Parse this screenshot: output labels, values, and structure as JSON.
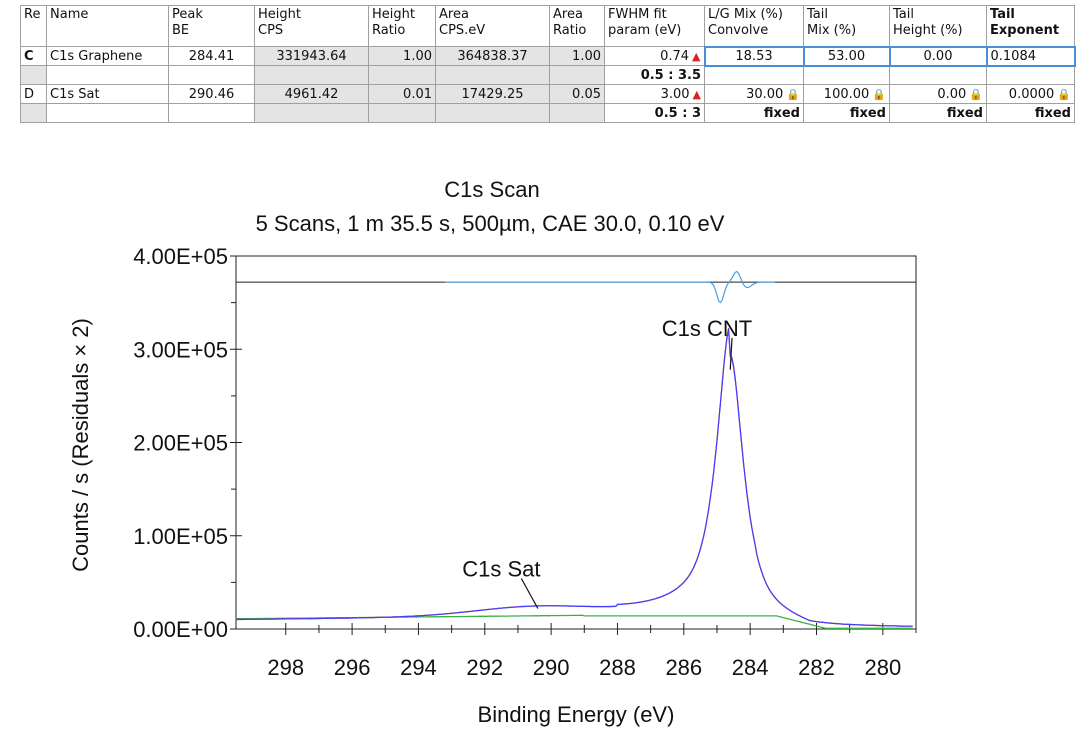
{
  "table": {
    "headers": [
      {
        "line1": "Re",
        "line2": ""
      },
      {
        "line1": "Name",
        "line2": ""
      },
      {
        "line1": "Peak",
        "line2": "BE"
      },
      {
        "line1": "Height",
        "line2": "CPS"
      },
      {
        "line1": "Height",
        "line2": "Ratio"
      },
      {
        "line1": "Area",
        "line2": "CPS.eV"
      },
      {
        "line1": "Area",
        "line2": "Ratio"
      },
      {
        "line1": "FWHM fit",
        "line2": "param (eV)"
      },
      {
        "line1": "L/G Mix (%)",
        "line2": "Convolve"
      },
      {
        "line1": "Tail",
        "line2": " Mix (%)"
      },
      {
        "line1": "Tail",
        "line2": "Height (%)"
      },
      {
        "line1": "Tail",
        "line2": "Exponent"
      }
    ],
    "rows": [
      {
        "id": "C",
        "name": "C1s Graphene",
        "peak_be": "284.41",
        "height_cps": "331943.64",
        "height_ratio": "1.00",
        "area": "364838.37",
        "area_ratio": "1.00",
        "fwhm": "0.74",
        "lg_mix": "18.53",
        "tail_mix": "53.00",
        "tail_height": "0.00",
        "tail_exp": "0.1084",
        "sub": {
          "fwhm": "0.5 : 3.5",
          "lg_mix": "",
          "tail_mix": "",
          "tail_height": "",
          "tail_exp": ""
        }
      },
      {
        "id": "D",
        "name": "C1s Sat",
        "peak_be": "290.46",
        "height_cps": "4961.42",
        "height_ratio": "0.01",
        "area": "17429.25",
        "area_ratio": "0.05",
        "fwhm": "3.00",
        "lg_mix": "30.00",
        "tail_mix": "100.00",
        "tail_height": "0.00",
        "tail_exp": "0.0000",
        "sub": {
          "fwhm": "0.5 : 3",
          "lg_mix": "fixed",
          "tail_mix": "fixed",
          "tail_height": "fixed",
          "tail_exp": "fixed"
        }
      }
    ],
    "peak_icon": "▲",
    "lock_icon": "🔒"
  },
  "chart_data": {
    "type": "line",
    "title": "C1s Scan",
    "subtitle": "5 Scans,  1 m 35.5 s,  500µm,  CAE 30.0,  0.10 eV",
    "xlabel": "Binding Energy (eV)",
    "ylabel": "Counts / s  (Residuals × 2)",
    "xlim": [
      299.5,
      279
    ],
    "ylim": [
      0,
      400000
    ],
    "x_ticks": [
      298,
      296,
      294,
      292,
      290,
      288,
      286,
      284,
      282,
      280
    ],
    "y_ticks": [
      {
        "v": 0,
        "label": "0.00E+00"
      },
      {
        "v": 100000,
        "label": "1.00E+05"
      },
      {
        "v": 200000,
        "label": "2.00E+05"
      },
      {
        "v": 300000,
        "label": "3.00E+05"
      },
      {
        "v": 400000,
        "label": "4.00E+05"
      }
    ],
    "residual_baseline": 372000,
    "colors": {
      "envelope": "#6a5acd",
      "data": "#d03030",
      "fit": "#4040ff",
      "background": "#3cb043",
      "residual": "#4aa0e0"
    },
    "annotations": [
      {
        "label": "C1s CNT",
        "x": 284.6,
        "y": 278000,
        "lx": 285.3,
        "ly": 310000
      },
      {
        "label": "C1s Sat",
        "x": 290.4,
        "y": 22000,
        "lx": 291.5,
        "ly": 52000
      }
    ]
  }
}
